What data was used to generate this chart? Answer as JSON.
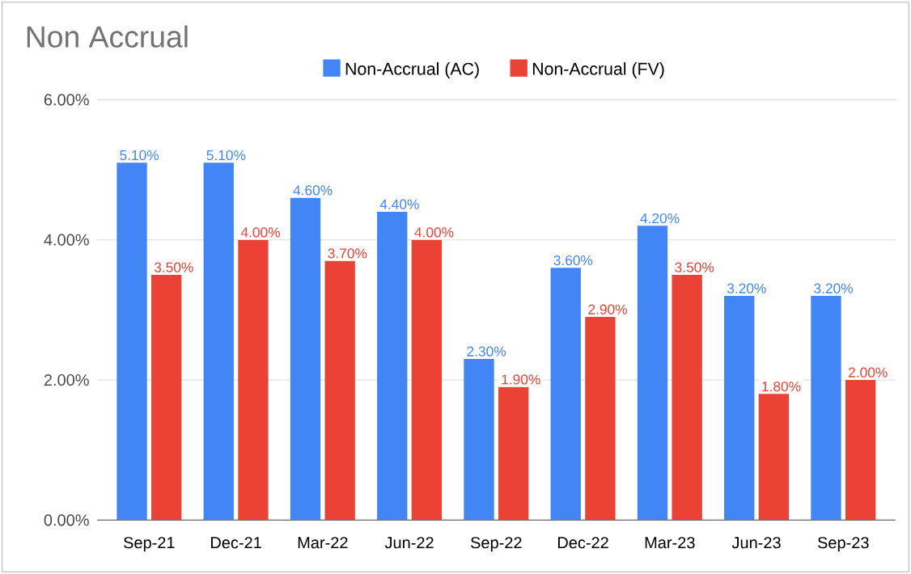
{
  "chart_data": {
    "type": "bar",
    "title": "Non Accrual",
    "categories": [
      "Sep-21",
      "Dec-21",
      "Mar-22",
      "Jun-22",
      "Sep-22",
      "Dec-22",
      "Mar-23",
      "Jun-23",
      "Sep-23"
    ],
    "series": [
      {
        "name": "Non-Accrual (AC)",
        "color": "#4285f4",
        "values": [
          5.1,
          5.1,
          4.6,
          4.4,
          2.3,
          3.6,
          4.2,
          3.2,
          3.2
        ],
        "value_labels": [
          "5.10%",
          "5.10%",
          "4.60%",
          "4.40%",
          "2.30%",
          "3.60%",
          "4.20%",
          "3.20%",
          "3.20%"
        ]
      },
      {
        "name": "Non-Accrual (FV)",
        "color": "#ea4335",
        "values": [
          3.5,
          4.0,
          3.7,
          4.0,
          1.9,
          2.9,
          3.5,
          1.8,
          2.0
        ],
        "value_labels": [
          "3.50%",
          "4.00%",
          "3.70%",
          "4.00%",
          "1.90%",
          "2.90%",
          "3.50%",
          "1.80%",
          "2.00%"
        ]
      }
    ],
    "ylim": [
      0,
      6
    ],
    "yticks": [
      {
        "value": 0,
        "label": "0.00%"
      },
      {
        "value": 2,
        "label": "2.00%"
      },
      {
        "value": 4,
        "label": "4.00%"
      },
      {
        "value": 6,
        "label": "6.00%"
      }
    ],
    "grid": "y",
    "legend": "top"
  }
}
